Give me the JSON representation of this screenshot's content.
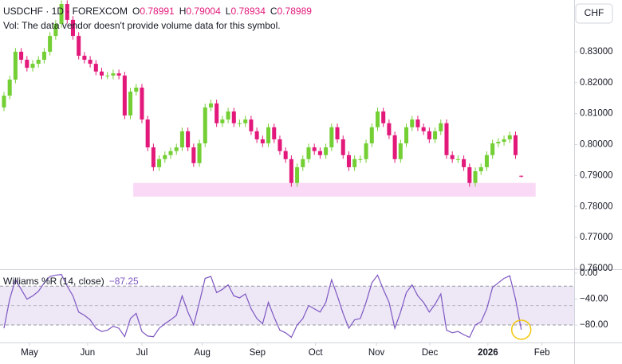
{
  "chart_data": [
    {
      "type": "candlestick",
      "symbol": "USDCHF · 1D · FOREXCOM",
      "ohlc_legend": [
        {
          "label": "O",
          "value": "0.78991"
        },
        {
          "label": "H",
          "value": "0.79004"
        },
        {
          "label": "L",
          "value": "0.78934"
        },
        {
          "label": "C",
          "value": "0.78989"
        }
      ],
      "volume_note": "Vol: The data vendor doesn't provide volume data for this symbol.",
      "currency": "CHF",
      "up_color": "#74cf35",
      "down_color": "#e2197a",
      "open": [
        0.812,
        0.8158,
        0.821,
        0.83,
        0.8274,
        0.8248,
        0.8261,
        0.8274,
        0.83,
        0.8351,
        0.839,
        0.8454,
        0.8403,
        0.8351,
        0.8287,
        0.8274,
        0.8261,
        0.8236,
        0.8223,
        0.8223,
        0.823,
        0.8223,
        0.8094,
        0.8171,
        0.8184,
        0.8081,
        0.7991,
        0.7927,
        0.7953,
        0.7966,
        0.7979,
        0.7991,
        0.8043,
        0.7991,
        0.794,
        0.8004,
        0.812,
        0.8133,
        0.8069,
        0.8081,
        0.8107,
        0.8069,
        0.8069,
        0.8081,
        0.8043,
        0.8017,
        0.8004,
        0.8056,
        0.8017,
        0.7979,
        0.7953,
        0.7876,
        0.7927,
        0.7953,
        0.7991,
        0.7979,
        0.7966,
        0.7991,
        0.8056,
        0.8017,
        0.7966,
        0.7927,
        0.7953,
        0.7953,
        0.8004,
        0.8056,
        0.8107,
        0.8069,
        0.803,
        0.7953,
        0.8004,
        0.8056,
        0.8081,
        0.8056,
        0.8043,
        0.8017,
        0.8043,
        0.8069,
        0.7966,
        0.7953,
        0.7953,
        0.7927,
        0.7876,
        0.7914,
        0.7927,
        0.7966,
        0.8004,
        0.8009,
        0.8017,
        0.803,
        0.78991
      ],
      "high": [
        0.817,
        0.8222,
        0.8312,
        0.8312,
        0.8286,
        0.8273,
        0.8286,
        0.8312,
        0.8363,
        0.8402,
        0.8466,
        0.8466,
        0.8415,
        0.8363,
        0.8299,
        0.8286,
        0.8273,
        0.8248,
        0.8235,
        0.8242,
        0.8242,
        0.8235,
        0.8183,
        0.8196,
        0.8196,
        0.8093,
        0.8003,
        0.7965,
        0.7978,
        0.7991,
        0.8003,
        0.8055,
        0.8055,
        0.8003,
        0.8016,
        0.8132,
        0.8145,
        0.8145,
        0.8093,
        0.8119,
        0.8119,
        0.8081,
        0.8093,
        0.8093,
        0.8055,
        0.8029,
        0.8068,
        0.8068,
        0.8029,
        0.7991,
        0.7965,
        0.7939,
        0.7965,
        0.8003,
        0.8003,
        0.7991,
        0.8003,
        0.8068,
        0.8068,
        0.8029,
        0.7978,
        0.7965,
        0.7965,
        0.8016,
        0.8068,
        0.8119,
        0.8119,
        0.8081,
        0.8042,
        0.8016,
        0.8068,
        0.8093,
        0.8093,
        0.8068,
        0.8055,
        0.8055,
        0.8081,
        0.8081,
        0.7978,
        0.7965,
        0.7965,
        0.7939,
        0.7926,
        0.7939,
        0.7978,
        0.8016,
        0.8021,
        0.8029,
        0.8042,
        0.8042,
        0.79004
      ],
      "low": [
        0.8108,
        0.8146,
        0.8198,
        0.8262,
        0.8236,
        0.8236,
        0.8249,
        0.8262,
        0.8288,
        0.8339,
        0.8378,
        0.8391,
        0.8339,
        0.8275,
        0.8262,
        0.8249,
        0.8224,
        0.8211,
        0.8211,
        0.8211,
        0.8211,
        0.8082,
        0.8082,
        0.8159,
        0.8069,
        0.7979,
        0.7915,
        0.7915,
        0.7941,
        0.7954,
        0.7967,
        0.7979,
        0.7979,
        0.7928,
        0.7928,
        0.7992,
        0.8108,
        0.8057,
        0.8057,
        0.8069,
        0.8057,
        0.8057,
        0.8057,
        0.8031,
        0.8005,
        0.7992,
        0.7992,
        0.8005,
        0.7967,
        0.7941,
        0.7864,
        0.7864,
        0.7915,
        0.7941,
        0.7967,
        0.7954,
        0.7954,
        0.7979,
        0.8005,
        0.7954,
        0.7915,
        0.7915,
        0.7941,
        0.7941,
        0.7992,
        0.8044,
        0.8057,
        0.8018,
        0.7941,
        0.7941,
        0.7992,
        0.8044,
        0.8044,
        0.8031,
        0.8005,
        0.8005,
        0.8031,
        0.7954,
        0.7941,
        0.7941,
        0.7915,
        0.7864,
        0.7864,
        0.7902,
        0.7915,
        0.7954,
        0.7992,
        0.7997,
        0.8005,
        0.7954,
        0.78934
      ],
      "close": [
        0.8158,
        0.821,
        0.83,
        0.8274,
        0.8248,
        0.8261,
        0.8274,
        0.83,
        0.8351,
        0.839,
        0.8454,
        0.8403,
        0.8351,
        0.8287,
        0.8274,
        0.8261,
        0.8236,
        0.8223,
        0.8223,
        0.823,
        0.8223,
        0.8094,
        0.8171,
        0.8184,
        0.8081,
        0.7991,
        0.7927,
        0.7953,
        0.7966,
        0.7979,
        0.7991,
        0.8043,
        0.7991,
        0.794,
        0.8004,
        0.812,
        0.8133,
        0.8069,
        0.8081,
        0.8107,
        0.8069,
        0.8069,
        0.8081,
        0.8043,
        0.8017,
        0.8004,
        0.8056,
        0.8017,
        0.7979,
        0.7953,
        0.7876,
        0.7927,
        0.7953,
        0.7991,
        0.7979,
        0.7966,
        0.7991,
        0.8056,
        0.8017,
        0.7966,
        0.7927,
        0.7953,
        0.7953,
        0.8004,
        0.8056,
        0.8107,
        0.8069,
        0.803,
        0.7953,
        0.8004,
        0.8056,
        0.8081,
        0.8056,
        0.8043,
        0.8017,
        0.8043,
        0.8069,
        0.7966,
        0.7953,
        0.7953,
        0.7927,
        0.7876,
        0.7914,
        0.7927,
        0.7966,
        0.8004,
        0.8009,
        0.8017,
        0.803,
        0.7966,
        0.78989
      ],
      "xlim": [
        -0.69,
        99.2
      ],
      "xticks": [
        {
          "value": 4.44,
          "label": "May"
        },
        {
          "value": 14.56,
          "label": "Jun"
        },
        {
          "value": 24.0,
          "label": "Jul"
        },
        {
          "value": 34.5,
          "label": "Aug"
        },
        {
          "value": 44.1,
          "label": "Sep"
        },
        {
          "value": 54.2,
          "label": "Oct"
        },
        {
          "value": 64.8,
          "label": "Nov"
        },
        {
          "value": 74.1,
          "label": "Dec"
        },
        {
          "value": 84.2,
          "label": "2026"
        },
        {
          "value": 93.6,
          "label": "Feb"
        }
      ],
      "ylim": [
        0.76,
        0.8467
      ],
      "yticks": [
        {
          "value": 0.76,
          "label": "0.76000"
        },
        {
          "value": 0.77,
          "label": "0.77000"
        },
        {
          "value": 0.78,
          "label": "0.78000"
        },
        {
          "value": 0.79,
          "label": "0.79000"
        },
        {
          "value": 0.8,
          "label": "0.80000"
        },
        {
          "value": 0.81,
          "label": "0.81000"
        },
        {
          "value": 0.82,
          "label": "0.82000"
        },
        {
          "value": 0.83,
          "label": "0.83000"
        }
      ],
      "zone": {
        "x": [
          22.5,
          92.5
        ],
        "y": [
          0.7832,
          0.7876
        ],
        "color": "#f9d9f6"
      }
    },
    {
      "type": "line",
      "title": "Williams %R (14, close)",
      "value_label": "−87.25",
      "color": "#7e57c2",
      "values": [
        -85,
        -40,
        -10,
        -25,
        -40,
        -35,
        -28,
        -15,
        -5,
        -3,
        -2,
        -20,
        -35,
        -60,
        -65,
        -72,
        -85,
        -90,
        -88,
        -82,
        -85,
        -98,
        -70,
        -62,
        -90,
        -97,
        -98,
        -85,
        -78,
        -72,
        -65,
        -35,
        -60,
        -80,
        -45,
        -8,
        -5,
        -30,
        -25,
        -18,
        -35,
        -38,
        -32,
        -55,
        -70,
        -78,
        -45,
        -68,
        -88,
        -92,
        -99,
        -80,
        -70,
        -50,
        -55,
        -60,
        -45,
        -10,
        -35,
        -62,
        -85,
        -72,
        -70,
        -45,
        -15,
        -3,
        -25,
        -45,
        -85,
        -60,
        -30,
        -18,
        -35,
        -45,
        -60,
        -48,
        -32,
        -88,
        -92,
        -90,
        -95,
        -99,
        -80,
        -75,
        -55,
        -22,
        -15,
        -8,
        -4,
        -40,
        -87.25
      ],
      "ylim": [
        -107,
        3.7
      ],
      "yticks": [
        {
          "value": 0,
          "label": "0.00"
        },
        {
          "value": -40,
          "label": "−40.00"
        },
        {
          "value": -80,
          "label": "−80.00"
        }
      ],
      "band": [
        -20,
        -80
      ],
      "band_color": "#ede7f6",
      "midline": -50
    }
  ]
}
